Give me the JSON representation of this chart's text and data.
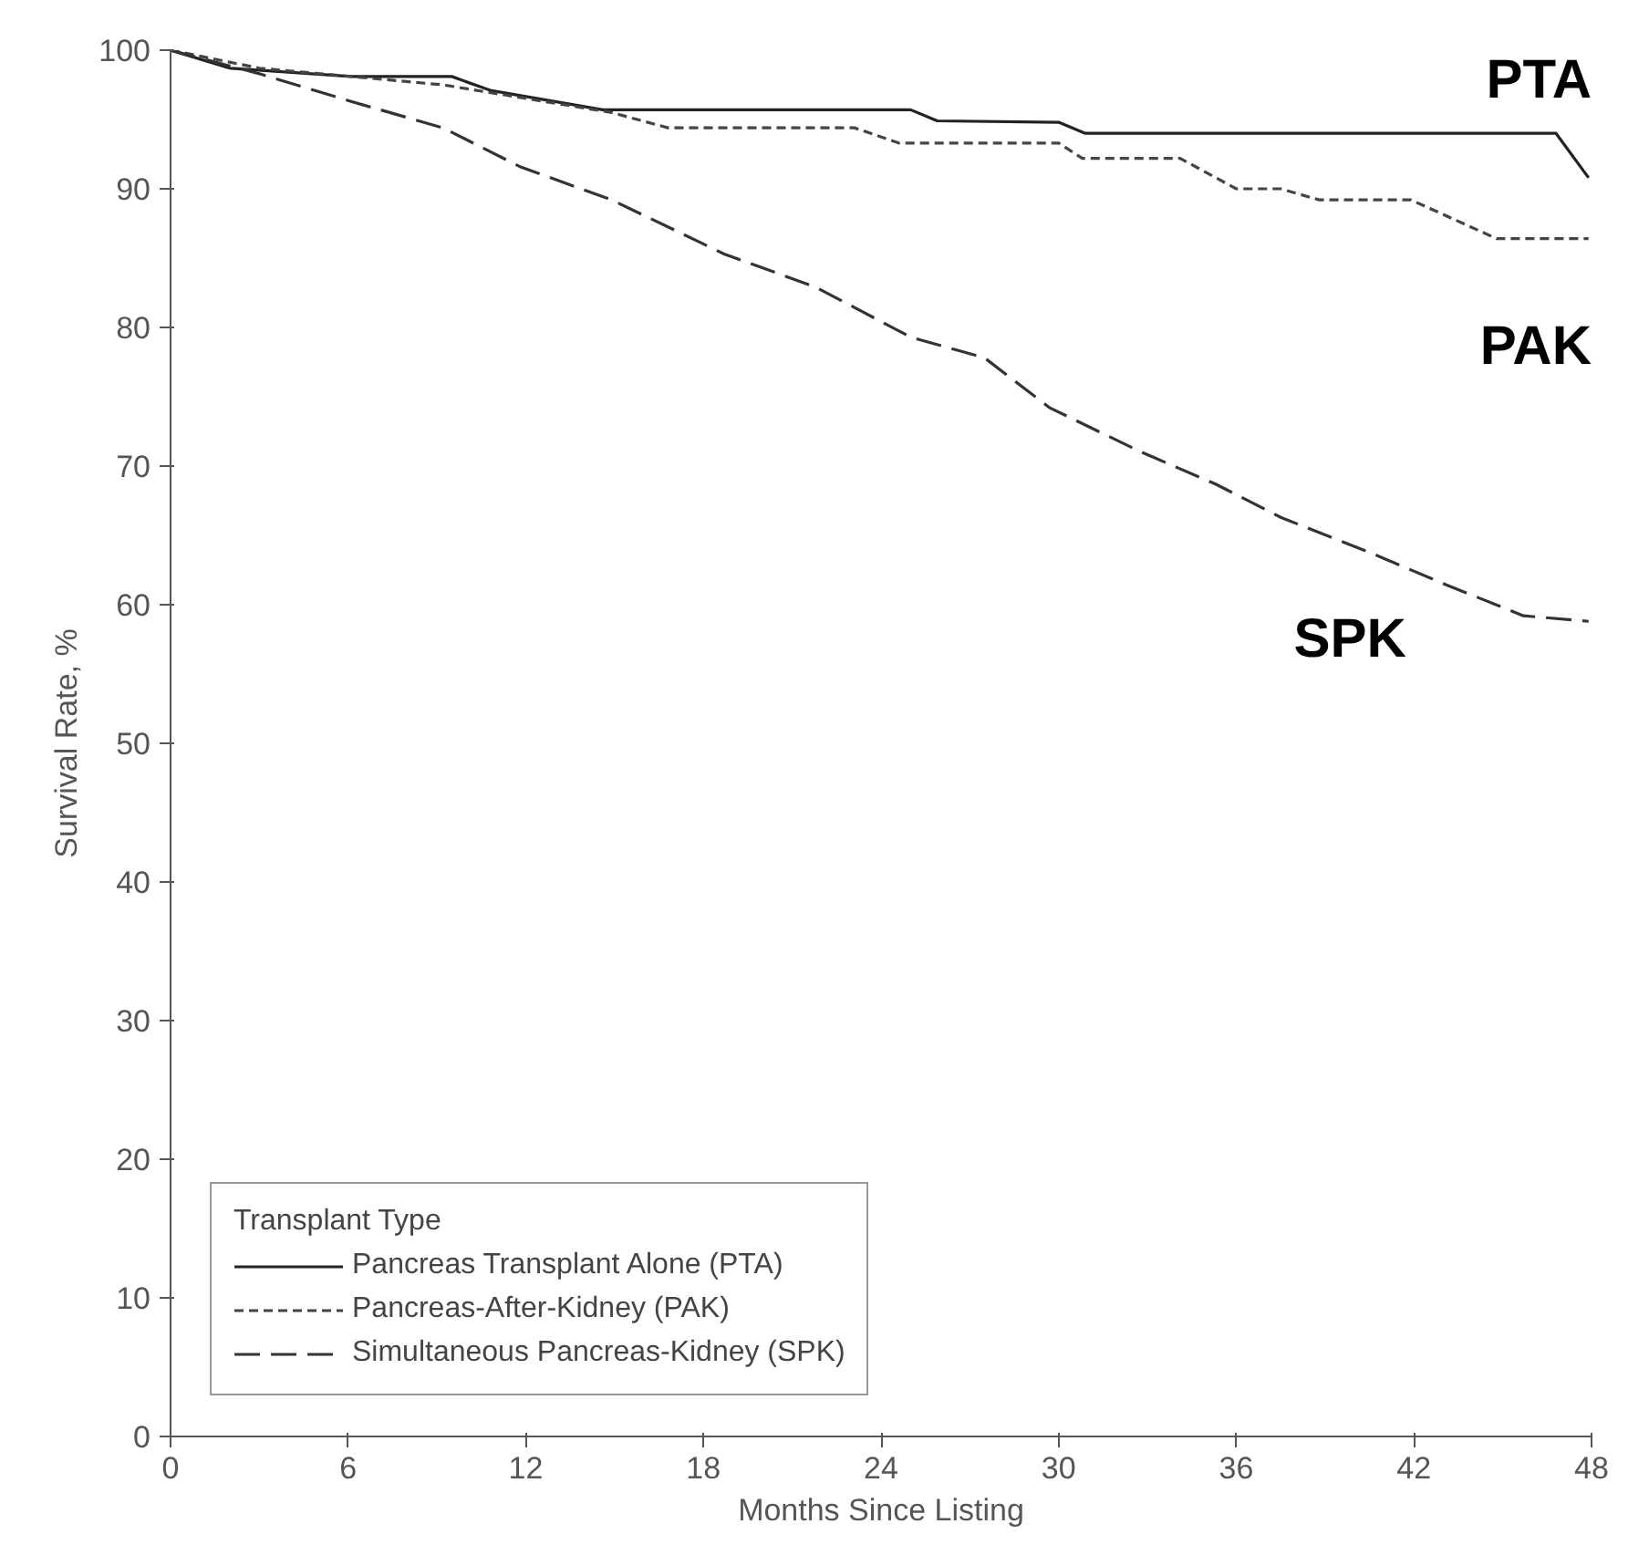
{
  "chart_data": {
    "type": "line",
    "xlabel": "Months Since Listing",
    "ylabel": "Survival Rate, %",
    "legend_title": "Transplant Type",
    "xlim": [
      0,
      48
    ],
    "xticks": [
      0,
      6,
      12,
      18,
      24,
      30,
      36,
      42,
      48
    ],
    "ylim": [
      0,
      100
    ],
    "yticks": [
      0,
      10,
      20,
      30,
      40,
      50,
      60,
      70,
      80,
      90,
      100
    ],
    "grid": false,
    "legend": "bottom left",
    "marker": "none",
    "series": [
      {
        "name": "Pancreas Transplant Alone (PTA)",
        "color": "#222222",
        "line_style": "solid",
        "x": [
          0,
          2.0,
          6.1,
          9.5,
          10.8,
          14.6,
          25.0,
          25.9,
          30.0,
          30.9,
          46.8,
          47.9
        ],
        "values": [
          100,
          98.7,
          98.1,
          98.1,
          97.1,
          95.7,
          95.7,
          94.9,
          94.8,
          94.0,
          94.0,
          90.8
        ]
      },
      {
        "name": "Pancreas-After-Kidney (PAK)",
        "color": "#444444",
        "line_style": "dotted",
        "x": [
          0,
          3.0,
          9.2,
          14.9,
          16.8,
          23.1,
          24.6,
          30.0,
          30.8,
          34.1,
          36.0,
          37.5,
          38.8,
          41.9,
          44.8,
          47.9
        ],
        "values": [
          100,
          98.7,
          97.5,
          95.5,
          94.4,
          94.4,
          93.3,
          93.3,
          92.2,
          92.2,
          90.0,
          90.0,
          89.2,
          89.2,
          86.4,
          86.4
        ]
      },
      {
        "name": "Simultaneous Pancreas-Kidney (SPK)",
        "color": "#333333",
        "line_style": "dashed",
        "x": [
          0,
          3.0,
          6.1,
          9.2,
          11.8,
          14.9,
          18.7,
          21.8,
          25.0,
          27.5,
          29.7,
          32.8,
          35.3,
          37.5,
          40.7,
          42.9,
          45.7,
          47.9
        ],
        "values": [
          100,
          98.3,
          96.3,
          94.4,
          91.6,
          89.2,
          85.3,
          82.9,
          79.3,
          77.8,
          74.2,
          71.0,
          68.7,
          66.3,
          63.6,
          61.6,
          59.2,
          58.8
        ]
      }
    ],
    "annotations": [
      "PTA",
      "PAK",
      "SPK"
    ]
  }
}
